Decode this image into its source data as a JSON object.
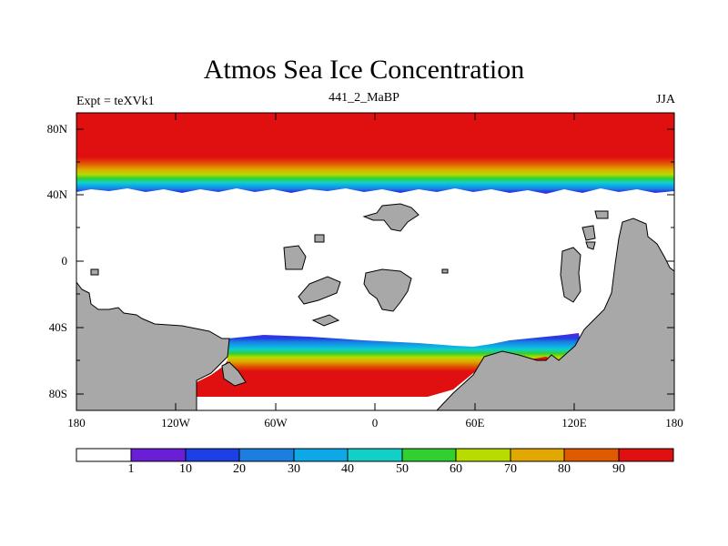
{
  "title": "Atmos Sea Ice Concentration",
  "subtitle": "441_2_MaBP",
  "left_label": "Expt = teXVk1",
  "right_label": "JJA",
  "colors": {
    "land": "#a8a8a8",
    "ocean_no_ice": "#ffffff",
    "ice_levels": [
      "#ffffff",
      "#6a1fd6",
      "#1c3fe6",
      "#1c7fe0",
      "#0ea8e8",
      "#10d0c8",
      "#30d030",
      "#b8dc00",
      "#e0a800",
      "#e05a00",
      "#e01010"
    ]
  },
  "map": {
    "y_ticks": [
      "80N",
      "40N",
      "0",
      "40S",
      "80S"
    ],
    "x_ticks": [
      "180",
      "120W",
      "60W",
      "0",
      "60E",
      "120E",
      "180"
    ]
  },
  "colorbar": {
    "labels": [
      "1",
      "10",
      "20",
      "30",
      "40",
      "50",
      "60",
      "70",
      "80",
      "90"
    ]
  }
}
